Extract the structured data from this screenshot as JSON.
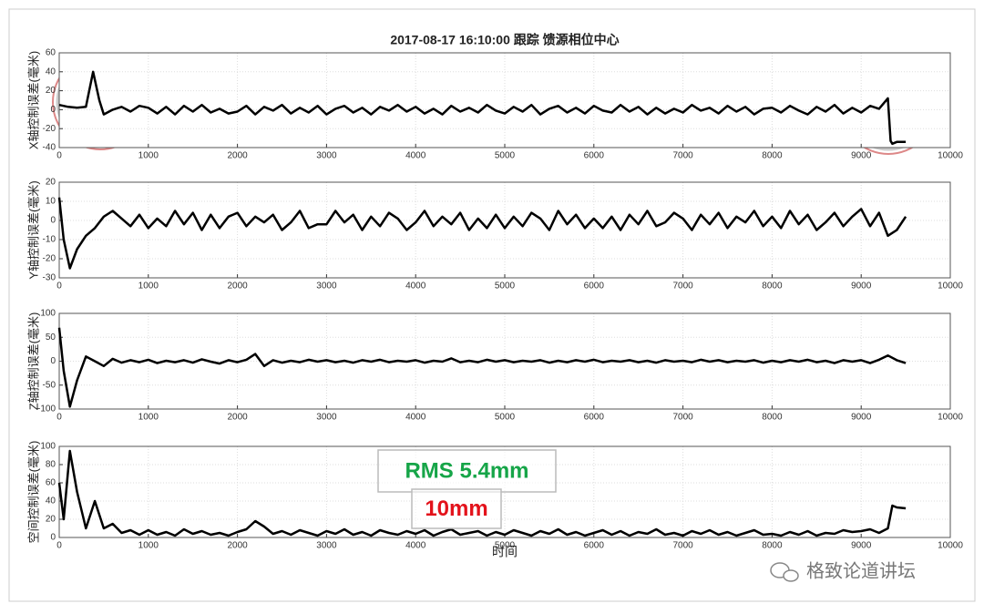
{
  "chart_data": [
    {
      "type": "line",
      "title": "2017-08-17 16:10:00 跟踪 馈源相位中心",
      "y_label": "X轴控制误差(毫米)",
      "grid": true,
      "color": "#000000",
      "xlim": [
        0,
        10000
      ],
      "xticks": [
        0,
        1000,
        2000,
        3000,
        4000,
        5000,
        6000,
        7000,
        8000,
        9000,
        10000
      ],
      "ylim": [
        -40,
        60
      ],
      "yticks": [
        -40,
        -20,
        0,
        20,
        40,
        60
      ],
      "x": [
        0,
        100,
        200,
        300,
        380,
        450,
        500,
        600,
        700,
        800,
        900,
        1000,
        1100,
        1200,
        1300,
        1400,
        1500,
        1600,
        1700,
        1800,
        1900,
        2000,
        2100,
        2200,
        2300,
        2400,
        2500,
        2600,
        2700,
        2800,
        2900,
        3000,
        3100,
        3200,
        3300,
        3400,
        3500,
        3600,
        3700,
        3800,
        3900,
        4000,
        4100,
        4200,
        4300,
        4400,
        4500,
        4600,
        4700,
        4800,
        4900,
        5000,
        5100,
        5200,
        5300,
        5400,
        5500,
        5600,
        5700,
        5800,
        5900,
        6000,
        6100,
        6200,
        6300,
        6400,
        6500,
        6600,
        6700,
        6800,
        6900,
        7000,
        7100,
        7200,
        7300,
        7400,
        7500,
        7600,
        7700,
        7800,
        7900,
        8000,
        8100,
        8200,
        8300,
        8400,
        8500,
        8600,
        8700,
        8800,
        8900,
        9000,
        9100,
        9200,
        9300,
        9330,
        9350,
        9400,
        9500
      ],
      "values": [
        5,
        3,
        2,
        3,
        40,
        10,
        -5,
        0,
        3,
        -2,
        4,
        2,
        -4,
        3,
        -5,
        4,
        -2,
        5,
        -3,
        1,
        -4,
        -2,
        4,
        -5,
        3,
        -1,
        5,
        -4,
        2,
        -3,
        4,
        -5,
        1,
        4,
        -3,
        2,
        -5,
        3,
        -1,
        5,
        -2,
        3,
        -4,
        1,
        -5,
        4,
        -2,
        2,
        -3,
        5,
        -1,
        -4,
        3,
        -2,
        5,
        -5,
        1,
        4,
        -3,
        2,
        -4,
        4,
        -1,
        -3,
        5,
        -2,
        3,
        -5,
        2,
        -4,
        1,
        -3,
        5,
        -1,
        2,
        -4,
        4,
        -2,
        3,
        -5,
        1,
        2,
        -3,
        4,
        -1,
        -5,
        3,
        -2,
        5,
        -4,
        2,
        -3,
        4,
        1,
        12,
        -33,
        -36,
        -34,
        -34
      ]
    },
    {
      "type": "line",
      "y_label": "Y轴控制误差(毫米)",
      "grid": true,
      "color": "#000000",
      "xlim": [
        0,
        10000
      ],
      "xticks": [
        0,
        1000,
        2000,
        3000,
        4000,
        5000,
        6000,
        7000,
        8000,
        9000,
        10000
      ],
      "ylim": [
        -30,
        20
      ],
      "yticks": [
        -30,
        -20,
        -10,
        0,
        10,
        20
      ],
      "x": [
        0,
        50,
        120,
        200,
        300,
        400,
        500,
        600,
        700,
        800,
        900,
        1000,
        1100,
        1200,
        1300,
        1400,
        1500,
        1600,
        1700,
        1800,
        1900,
        2000,
        2100,
        2200,
        2300,
        2400,
        2500,
        2600,
        2700,
        2800,
        2900,
        3000,
        3100,
        3200,
        3300,
        3400,
        3500,
        3600,
        3700,
        3800,
        3900,
        4000,
        4100,
        4200,
        4300,
        4400,
        4500,
        4600,
        4700,
        4800,
        4900,
        5000,
        5100,
        5200,
        5300,
        5400,
        5500,
        5600,
        5700,
        5800,
        5900,
        6000,
        6100,
        6200,
        6300,
        6400,
        6500,
        6600,
        6700,
        6800,
        6900,
        7000,
        7100,
        7200,
        7300,
        7400,
        7500,
        7600,
        7700,
        7800,
        7900,
        8000,
        8100,
        8200,
        8300,
        8400,
        8500,
        8600,
        8700,
        8800,
        8900,
        9000,
        9100,
        9200,
        9300,
        9400,
        9500
      ],
      "values": [
        12,
        -10,
        -25,
        -15,
        -8,
        -4,
        2,
        5,
        1,
        -3,
        3,
        -4,
        1,
        -3,
        5,
        -2,
        4,
        -5,
        3,
        -4,
        2,
        4,
        -3,
        2,
        -1,
        3,
        -5,
        -1,
        5,
        -4,
        -2,
        -2,
        5,
        -1,
        3,
        -5,
        2,
        -3,
        4,
        1,
        -5,
        -1,
        5,
        -3,
        2,
        -2,
        4,
        -5,
        1,
        -4,
        3,
        -4,
        2,
        -3,
        4,
        1,
        -5,
        5,
        -2,
        3,
        -4,
        1,
        -4,
        2,
        -5,
        3,
        -2,
        5,
        -3,
        -1,
        4,
        1,
        -5,
        3,
        -2,
        4,
        -4,
        2,
        -1,
        5,
        -3,
        2,
        -4,
        5,
        -2,
        3,
        -5,
        -1,
        4,
        -3,
        2,
        6,
        -3,
        4,
        -8,
        -5,
        2
      ]
    },
    {
      "type": "line",
      "y_label": "Z轴控制误差(毫米)",
      "grid": true,
      "color": "#000000",
      "xlim": [
        0,
        10000
      ],
      "xticks": [
        0,
        1000,
        2000,
        3000,
        4000,
        5000,
        6000,
        7000,
        8000,
        9000,
        10000
      ],
      "ylim": [
        -100,
        100
      ],
      "yticks": [
        -100,
        -50,
        0,
        50,
        100
      ],
      "x": [
        0,
        50,
        120,
        200,
        300,
        400,
        500,
        600,
        700,
        800,
        900,
        1000,
        1100,
        1200,
        1300,
        1400,
        1500,
        1600,
        1700,
        1800,
        1900,
        2000,
        2100,
        2200,
        2300,
        2400,
        2500,
        2600,
        2700,
        2800,
        2900,
        3000,
        3100,
        3200,
        3300,
        3400,
        3500,
        3600,
        3700,
        3800,
        3900,
        4000,
        4100,
        4200,
        4300,
        4400,
        4500,
        4600,
        4700,
        4800,
        4900,
        5000,
        5100,
        5200,
        5300,
        5400,
        5500,
        5600,
        5700,
        5800,
        5900,
        6000,
        6100,
        6200,
        6300,
        6400,
        6500,
        6600,
        6700,
        6800,
        6900,
        7000,
        7100,
        7200,
        7300,
        7400,
        7500,
        7600,
        7700,
        7800,
        7900,
        8000,
        8100,
        8200,
        8300,
        8400,
        8500,
        8600,
        8700,
        8800,
        8900,
        9000,
        9100,
        9200,
        9300,
        9400,
        9500
      ],
      "values": [
        70,
        -20,
        -95,
        -40,
        10,
        0,
        -10,
        5,
        -3,
        2,
        -2,
        3,
        -4,
        1,
        -2,
        2,
        -3,
        4,
        -1,
        -5,
        2,
        -2,
        3,
        15,
        -10,
        2,
        -3,
        1,
        -2,
        3,
        -1,
        2,
        -2,
        1,
        -3,
        2,
        -1,
        3,
        -2,
        1,
        -1,
        2,
        -3,
        1,
        -1,
        6,
        -2,
        1,
        -2,
        3,
        -1,
        2,
        -2,
        1,
        -1,
        2,
        -3,
        1,
        -2,
        2,
        -1,
        3,
        -2,
        1,
        -1,
        2,
        -2,
        1,
        -3,
        2,
        -1,
        1,
        -2,
        3,
        -1,
        2,
        -2,
        1,
        -1,
        2,
        -3,
        1,
        -2,
        2,
        -1,
        3,
        -2,
        1,
        -4,
        2,
        -1,
        2,
        -4,
        3,
        12,
        2,
        -4
      ]
    },
    {
      "type": "line",
      "y_label": "空间控制误差(毫米)",
      "x_label": "时间",
      "grid": true,
      "color": "#000000",
      "xlim": [
        0,
        10000
      ],
      "xticks": [
        0,
        1000,
        2000,
        3000,
        4000,
        5000,
        6000,
        7000,
        8000,
        9000,
        10000
      ],
      "ylim": [
        0,
        100
      ],
      "yticks": [
        0,
        20,
        40,
        60,
        80,
        100
      ],
      "x": [
        0,
        50,
        120,
        200,
        300,
        400,
        500,
        600,
        700,
        800,
        900,
        1000,
        1100,
        1200,
        1300,
        1400,
        1500,
        1600,
        1700,
        1800,
        1900,
        2000,
        2100,
        2200,
        2300,
        2400,
        2500,
        2600,
        2700,
        2800,
        2900,
        3000,
        3100,
        3200,
        3300,
        3400,
        3500,
        3600,
        3700,
        3800,
        3900,
        4000,
        4100,
        4200,
        4300,
        4400,
        4500,
        4600,
        4700,
        4800,
        4900,
        5000,
        5100,
        5200,
        5300,
        5400,
        5500,
        5600,
        5700,
        5800,
        5900,
        6000,
        6100,
        6200,
        6300,
        6400,
        6500,
        6600,
        6700,
        6800,
        6900,
        7000,
        7100,
        7200,
        7300,
        7400,
        7500,
        7600,
        7700,
        7800,
        7900,
        8000,
        8100,
        8200,
        8300,
        8400,
        8500,
        8600,
        8700,
        8800,
        8900,
        9000,
        9100,
        9200,
        9300,
        9350,
        9400,
        9500
      ],
      "values": [
        60,
        20,
        95,
        50,
        10,
        40,
        10,
        15,
        5,
        8,
        3,
        8,
        3,
        6,
        2,
        9,
        4,
        7,
        3,
        5,
        2,
        6,
        9,
        18,
        12,
        4,
        7,
        3,
        8,
        5,
        2,
        7,
        4,
        9,
        3,
        6,
        2,
        8,
        5,
        3,
        7,
        4,
        8,
        2,
        6,
        9,
        3,
        5,
        7,
        2,
        6,
        3,
        8,
        5,
        2,
        7,
        4,
        9,
        3,
        6,
        2,
        5,
        8,
        3,
        7,
        2,
        6,
        4,
        9,
        3,
        5,
        2,
        7,
        4,
        8,
        3,
        6,
        2,
        5,
        8,
        3,
        4,
        2,
        6,
        3,
        7,
        2,
        5,
        4,
        8,
        6,
        7,
        9,
        5,
        10,
        35,
        33,
        32
      ],
      "annotations": [
        {
          "text": "RMS 5.4mm",
          "color": "#16a548"
        },
        {
          "text": "10mm",
          "color": "#e3121b"
        }
      ]
    }
  ],
  "watermark": "格致论道讲坛"
}
